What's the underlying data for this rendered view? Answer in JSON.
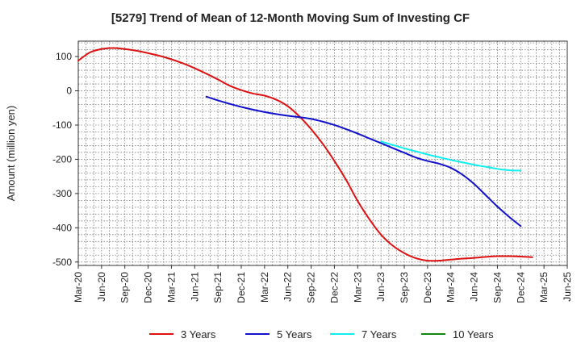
{
  "chart_data": {
    "type": "line",
    "title": "[5279]  Trend of Mean of 12-Month Moving Sum of Investing CF",
    "xlabel": "",
    "ylabel": "Amount (million yen)",
    "ylim": [
      -510,
      145
    ],
    "yticks": [
      100,
      0,
      -100,
      -200,
      -300,
      -400,
      -500
    ],
    "categories": [
      "Mar-20",
      "Jun-20",
      "Sep-20",
      "Dec-20",
      "Mar-21",
      "Jun-21",
      "Sep-21",
      "Dec-21",
      "Mar-22",
      "Jun-22",
      "Sep-22",
      "Dec-22",
      "Mar-23",
      "Jun-23",
      "Sep-23",
      "Dec-23",
      "Mar-24",
      "Jun-24",
      "Sep-24",
      "Dec-24",
      "Mar-25",
      "Jun-25"
    ],
    "series": [
      {
        "name": "3 Years",
        "color": "#dd1111",
        "points": [
          [
            0,
            88
          ],
          [
            0.5,
            112
          ],
          [
            1,
            122
          ],
          [
            1.5,
            125
          ],
          [
            2,
            122
          ],
          [
            2.5,
            117
          ],
          [
            3,
            110
          ],
          [
            3.5,
            102
          ],
          [
            4,
            92
          ],
          [
            4.5,
            80
          ],
          [
            5,
            66
          ],
          [
            5.5,
            50
          ],
          [
            6,
            33
          ],
          [
            6.5,
            15
          ],
          [
            7,
            2
          ],
          [
            7.5,
            -8
          ],
          [
            8,
            -14
          ],
          [
            8.5,
            -26
          ],
          [
            9,
            -45
          ],
          [
            9.5,
            -75
          ],
          [
            10,
            -112
          ],
          [
            10.5,
            -155
          ],
          [
            11,
            -205
          ],
          [
            11.5,
            -260
          ],
          [
            12,
            -322
          ],
          [
            12.5,
            -375
          ],
          [
            13,
            -420
          ],
          [
            13.5,
            -452
          ],
          [
            14,
            -474
          ],
          [
            14.5,
            -489
          ],
          [
            15,
            -496
          ],
          [
            15.5,
            -496
          ],
          [
            16,
            -493
          ],
          [
            16.5,
            -490
          ],
          [
            17,
            -488
          ],
          [
            17.5,
            -485
          ],
          [
            18,
            -483
          ],
          [
            18.5,
            -483
          ],
          [
            19,
            -484
          ],
          [
            19.5,
            -486
          ]
        ]
      },
      {
        "name": "5 Years",
        "color": "#1111cc",
        "points": [
          [
            5.5,
            -17
          ],
          [
            6,
            -28
          ],
          [
            6.5,
            -38
          ],
          [
            7,
            -47
          ],
          [
            7.5,
            -55
          ],
          [
            8,
            -62
          ],
          [
            8.5,
            -68
          ],
          [
            9,
            -73
          ],
          [
            9.5,
            -77
          ],
          [
            10,
            -82
          ],
          [
            10.5,
            -90
          ],
          [
            11,
            -100
          ],
          [
            11.5,
            -112
          ],
          [
            12,
            -125
          ],
          [
            12.5,
            -139
          ],
          [
            13,
            -153
          ],
          [
            13.5,
            -167
          ],
          [
            14,
            -181
          ],
          [
            14.5,
            -195
          ],
          [
            15,
            -205
          ],
          [
            15.5,
            -213
          ],
          [
            16,
            -225
          ],
          [
            16.5,
            -245
          ],
          [
            17,
            -272
          ],
          [
            17.5,
            -305
          ],
          [
            18,
            -338
          ],
          [
            18.5,
            -368
          ],
          [
            19,
            -395
          ]
        ]
      },
      {
        "name": "7 Years",
        "color": "#11eeee",
        "points": [
          [
            13,
            -148
          ],
          [
            13.5,
            -158
          ],
          [
            14,
            -168
          ],
          [
            14.5,
            -177
          ],
          [
            15,
            -186
          ],
          [
            15.5,
            -194
          ],
          [
            16,
            -202
          ],
          [
            16.5,
            -209
          ],
          [
            17,
            -216
          ],
          [
            17.5,
            -222
          ],
          [
            18,
            -228
          ],
          [
            18.5,
            -232
          ],
          [
            19,
            -233
          ]
        ]
      },
      {
        "name": "10 Years",
        "color": "#118811",
        "points": []
      }
    ],
    "legend_position": "bottom",
    "grid": true
  }
}
